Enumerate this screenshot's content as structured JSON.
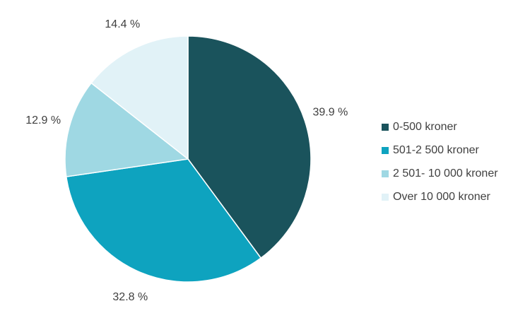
{
  "chart_data": {
    "type": "pie",
    "slices": [
      {
        "label": "0-500 kroner",
        "value": 39.9,
        "value_label": "39.9 %",
        "color": "#1a535c"
      },
      {
        "label": "501-2 500 kroner",
        "value": 32.8,
        "value_label": "32.8 %",
        "color": "#0ea3bf"
      },
      {
        "label": "2 501- 10 000 kroner",
        "value": 12.9,
        "value_label": "12.9 %",
        "color": "#9fd8e3"
      },
      {
        "label": "Over 10 000 kroner",
        "value": 14.4,
        "value_label": "14.4 %",
        "color": "#e1f2f7"
      }
    ],
    "start_angle": "12 o'clock",
    "direction": "clockwise",
    "legend_position": "right",
    "data_labels": "outside"
  }
}
